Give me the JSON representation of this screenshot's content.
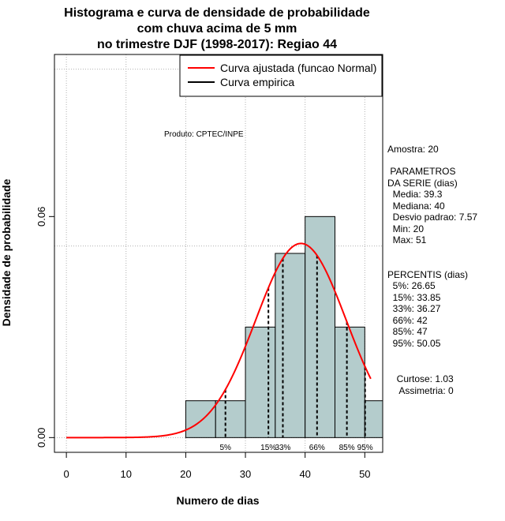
{
  "chart_data": {
    "type": "bar",
    "title_lines": [
      "Histograma e curva de densidade de probabilidade",
      "com chuva acima de 5 mm",
      "no trimestre DJF (1998-2017): Regiao 44"
    ],
    "xlabel": "Numero de dias",
    "ylabel": "Densidade de probabilidade",
    "xlim": [
      -2,
      53
    ],
    "ylim": [
      -0.004,
      0.104
    ],
    "x_ticks": [
      0,
      10,
      20,
      30,
      40,
      50
    ],
    "x_tick_labels": [
      "0",
      "10",
      "20",
      "30",
      "40",
      "50"
    ],
    "y_ticks": [
      0.0,
      0.06
    ],
    "y_tick_labels": [
      "0.00",
      "0.06"
    ],
    "grid": true,
    "grid_x": [
      0,
      10,
      20,
      30,
      40,
      50
    ],
    "grid_y": [
      0.0,
      0.052,
      0.1
    ],
    "bins": [
      {
        "x0": 20,
        "x1": 25,
        "density": 0.01
      },
      {
        "x0": 25,
        "x1": 30,
        "density": 0.01
      },
      {
        "x0": 30,
        "x1": 35,
        "density": 0.03
      },
      {
        "x0": 35,
        "x1": 40,
        "density": 0.05
      },
      {
        "x0": 40,
        "x1": 45,
        "density": 0.06
      },
      {
        "x0": 45,
        "x1": 50,
        "density": 0.03
      },
      {
        "x0": 50,
        "x1": 55,
        "density": 0.01
      }
    ],
    "bar_color": "#b4cccc",
    "normal_curve": {
      "mean": 39.3,
      "sd": 7.57,
      "x_from": 0,
      "x_to": 51,
      "color": "#ff0000"
    },
    "percentile_lines": [
      {
        "x": 26.65,
        "label": "5%"
      },
      {
        "x": 33.85,
        "label": "15%"
      },
      {
        "x": 36.27,
        "label": "33%"
      },
      {
        "x": 42,
        "label": "66%"
      },
      {
        "x": 47,
        "label": "85%"
      },
      {
        "x": 50.05,
        "label": "95%"
      }
    ],
    "legend": {
      "position": "top-right",
      "entries": [
        {
          "label": "Curva ajustada (funcao Normal)",
          "color": "#ff0000"
        },
        {
          "label": "Curva empirica",
          "color": "#000000"
        }
      ]
    },
    "annotation": "Produto: CPTEC/INPE"
  },
  "stats_panel": {
    "lines": [
      "Amostra: 20",
      " PARAMETROS",
      "DA SERIE (dias)",
      "  Media: 39.3",
      "  Mediana: 40",
      "  Desvio padrao: 7.57",
      "  Min: 20",
      "  Max: 51",
      "PERCENTIS (dias)",
      "  5%: 26.65",
      "  15%: 33.85",
      "  33%: 36.27",
      "  66%: 42",
      "  85%: 47",
      "  95%: 50.05",
      "  Curtose: 1.03",
      "   Assimetria: 0"
    ]
  }
}
